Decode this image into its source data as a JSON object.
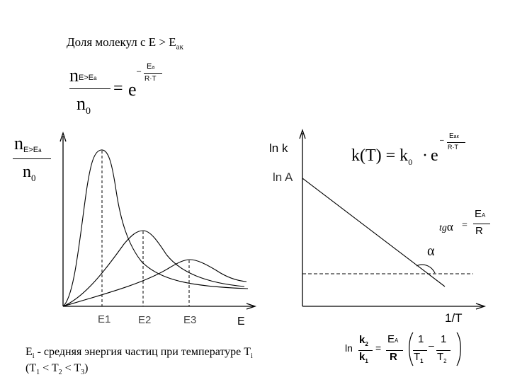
{
  "title": {
    "prefix": "Доля молекул с E > E",
    "sub": "ак"
  },
  "formula1": {
    "num_main": "n",
    "num_sub": "E>E",
    "num_sub2": "a",
    "den_main": "n",
    "den_sub": "0",
    "equals": "=",
    "base": "e",
    "exp_minus": "–",
    "exp_num": "E",
    "exp_num_sub": "a",
    "exp_den": "R·T"
  },
  "left_chart": {
    "ylabel_main": "n",
    "ylabel_sub": "E>E",
    "ylabel_sub2": "a",
    "ylabel_den_main": "n",
    "ylabel_den_sub": "0",
    "xlabel": "E",
    "markers": [
      {
        "label": "E",
        "sub": "1"
      },
      {
        "label": "E",
        "sub": "2"
      },
      {
        "label": "E",
        "sub": "3"
      }
    ]
  },
  "right_chart": {
    "ylabel": "ln k",
    "ln_a": "ln A",
    "xlabel": "1/T",
    "alpha": "α",
    "tg_label": "tg",
    "tg_alpha": "α",
    "tg_eq": "=",
    "tg_num": "E",
    "tg_num_sub": "A",
    "tg_den": "R"
  },
  "formula2": {
    "lhs": "k(T) = k",
    "lhs_sub": "0",
    "dot": "·",
    "base": "e",
    "exp_minus": "–",
    "exp_num": "E",
    "exp_num_sub": "ак",
    "exp_den": "R·T"
  },
  "caption": {
    "line1_e": "E",
    "line1_sub": "i",
    "line1_text": " - средняя энергия частиц при температуре T",
    "line1_sub2": "i",
    "line2": "(T",
    "line2_s1": "1",
    "line2_lt1": " < T",
    "line2_s2": "2",
    "line2_lt2": " < T",
    "line2_s3": "3",
    "line2_end": ")"
  },
  "formula3": {
    "ln": "ln",
    "k_num": "k",
    "k_num_sub": "2",
    "k_den": "k",
    "k_den_sub": "1",
    "eq": "=",
    "e_num": "E",
    "e_num_sub": "A",
    "e_den": "R",
    "one_a": "1",
    "t_a": "T",
    "t_a_sub": "1",
    "minus": "–",
    "one_b": "1",
    "t_b": "T",
    "t_b_sub": "2"
  },
  "chart_data": {
    "left": {
      "type": "line",
      "series": [
        {
          "peak_marker": "E1",
          "points": [
            [
              0,
              0
            ],
            [
              1,
              2
            ],
            [
              2,
              6
            ],
            [
              3,
              9
            ],
            [
              4,
              10
            ],
            [
              5,
              9
            ],
            [
              6,
              7
            ],
            [
              7,
              4.5
            ],
            [
              8,
              2.8
            ],
            [
              9,
              1.7
            ],
            [
              10,
              1.1
            ],
            [
              11,
              0.7
            ],
            [
              12,
              0.5
            ]
          ]
        },
        {
          "peak_marker": "E2",
          "points": [
            [
              0,
              0
            ],
            [
              2,
              1.2
            ],
            [
              4,
              2.8
            ],
            [
              6,
              4.4
            ],
            [
              8,
              5.2
            ],
            [
              10,
              4.6
            ],
            [
              12,
              3.2
            ],
            [
              14,
              1.9
            ],
            [
              16,
              1.0
            ]
          ]
        },
        {
          "peak_marker": "E3",
          "points": [
            [
              0,
              0
            ],
            [
              4,
              0.9
            ],
            [
              8,
              1.8
            ],
            [
              12,
              2.7
            ],
            [
              14,
              3.0
            ],
            [
              16,
              2.8
            ],
            [
              18,
              2.2
            ],
            [
              20,
              1.5
            ]
          ]
        }
      ]
    },
    "right": {
      "type": "line",
      "series": [
        {
          "points": [
            [
              0,
              10
            ],
            [
              10,
              0
            ]
          ]
        }
      ]
    }
  }
}
